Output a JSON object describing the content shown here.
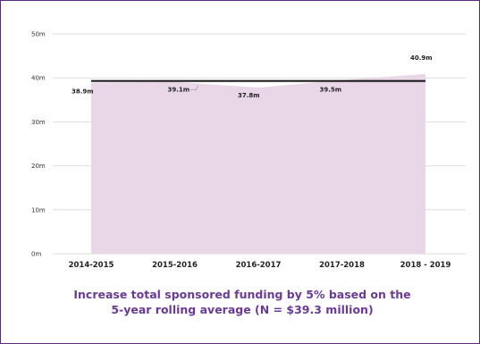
{
  "chart_data": {
    "type": "area",
    "categories": [
      "2014-2015",
      "2015-2016",
      "2016-2017",
      "2017-2018",
      "2018 - 2019"
    ],
    "series": [
      {
        "values": [
          38.9,
          39.1,
          37.8,
          39.5,
          40.9
        ],
        "labels": [
          "38.9m",
          "39.1m",
          "37.8m",
          "39.5m",
          "40.9m"
        ],
        "color": "#e9d7e8"
      }
    ],
    "reference_line": {
      "value": 39.3,
      "color": "#111111"
    },
    "ylim": [
      0,
      50
    ],
    "yticks": [
      0,
      10,
      20,
      30,
      40,
      50
    ],
    "ytick_labels": [
      "0m",
      "10m",
      "20m",
      "30m",
      "40m",
      "50m"
    ],
    "grid": true,
    "caption": [
      "Increase total sponsored funding by 5% based on the",
      "5-year rolling average (N = $39.3 million)"
    ]
  }
}
